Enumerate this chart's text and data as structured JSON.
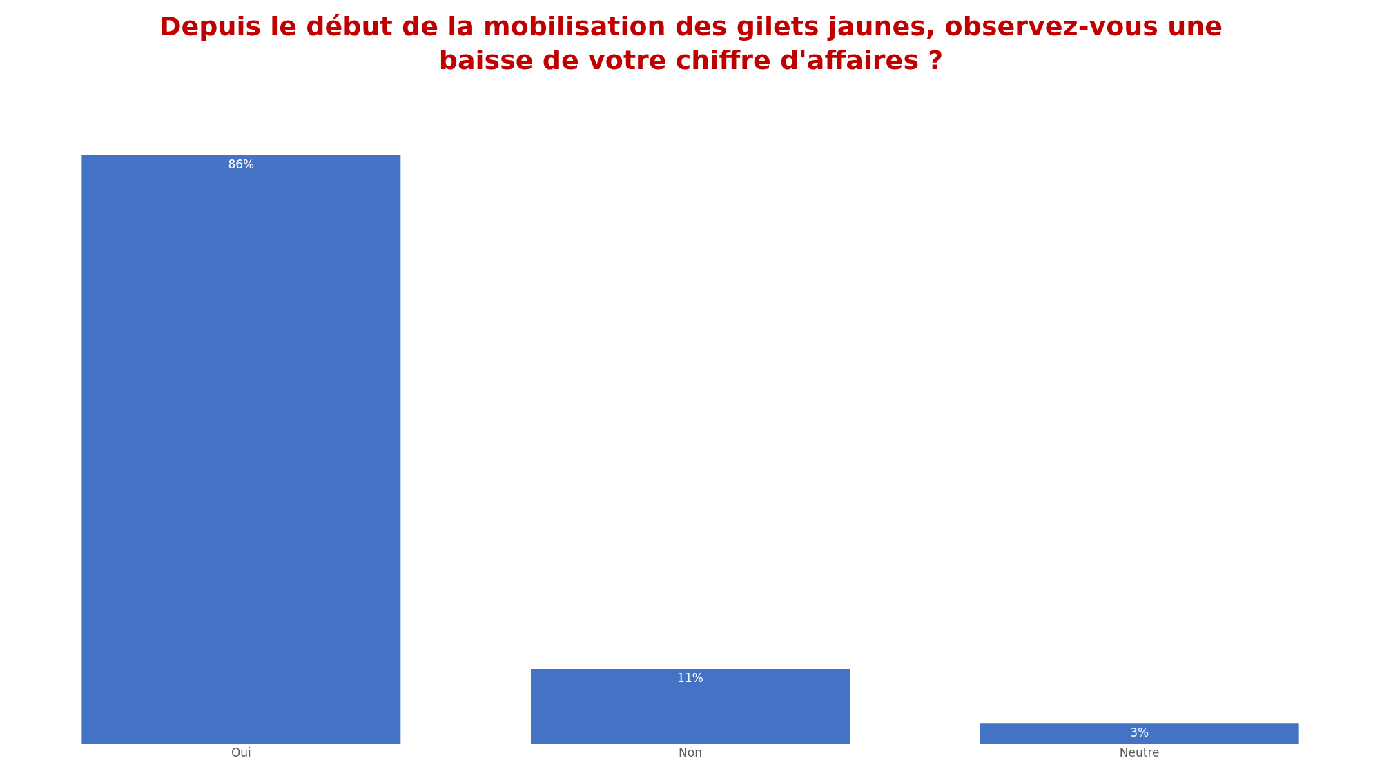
{
  "chart_data": {
    "type": "bar",
    "title": "Depuis le début de la mobilisation des gilets jaunes, observez-vous une\nbaisse de votre chiffre d'affaires ?",
    "categories": [
      "Oui",
      "Non",
      "Neutre"
    ],
    "values": [
      86,
      11,
      3
    ],
    "value_labels": [
      "86%",
      "11%",
      "3%"
    ],
    "color": "#4472c4"
  }
}
